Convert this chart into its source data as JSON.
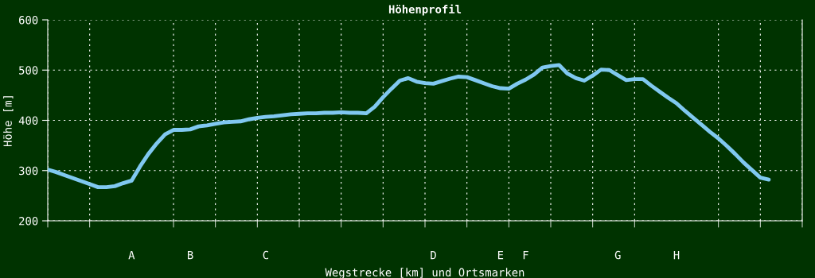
{
  "chart_data": {
    "type": "line",
    "title": "Höhenprofil",
    "xlabel": "Wegstrecke [km] und Ortsmarken",
    "ylabel": "Höhe [m]",
    "categories": [
      null,
      null,
      null,
      null,
      null,
      null,
      null,
      null,
      null,
      null,
      "A",
      null,
      null,
      null,
      null,
      null,
      null,
      "B",
      null,
      null,
      null,
      null,
      null,
      null,
      null,
      null,
      "C",
      null,
      null,
      null,
      null,
      null,
      null,
      null,
      null,
      null,
      null,
      null,
      null,
      null,
      null,
      null,
      null,
      null,
      null,
      null,
      "D",
      null,
      null,
      null,
      null,
      null,
      null,
      null,
      "E",
      null,
      null,
      "F",
      null,
      null,
      null,
      null,
      null,
      null,
      null,
      null,
      null,
      null,
      "G",
      null,
      null,
      null,
      null,
      null,
      null,
      "H",
      null,
      null,
      null,
      null,
      null,
      null,
      null,
      null,
      null,
      null,
      null,
      null,
      null,
      null,
      null
    ],
    "series": [
      {
        "color": "#80c8f0",
        "values": [
          302,
          297,
          291,
          285,
          279,
          273,
          267,
          267,
          269,
          275,
          280,
          308,
          333,
          354,
          372,
          381,
          381,
          382,
          388,
          390,
          393,
          396,
          397,
          398,
          402,
          405,
          407,
          408,
          410,
          412,
          413,
          414,
          414,
          415,
          415,
          416,
          415,
          415,
          414,
          427,
          446,
          463,
          479,
          484,
          477,
          474,
          473,
          478,
          483,
          487,
          486,
          480,
          474,
          468,
          464,
          463,
          473,
          481,
          491,
          505,
          508,
          510,
          493,
          484,
          479,
          489,
          501,
          500,
          490,
          480,
          482,
          482,
          469,
          457,
          445,
          434,
          419,
          405,
          391,
          377,
          364,
          349,
          333,
          316,
          301,
          286,
          282,
          null,
          null,
          null,
          null
        ]
      }
    ],
    "ylim": [
      200,
      600
    ],
    "yticks": [
      200,
      300,
      400,
      500,
      600
    ],
    "grid": true,
    "legend": false,
    "marker": "none",
    "line_style": "solid"
  }
}
